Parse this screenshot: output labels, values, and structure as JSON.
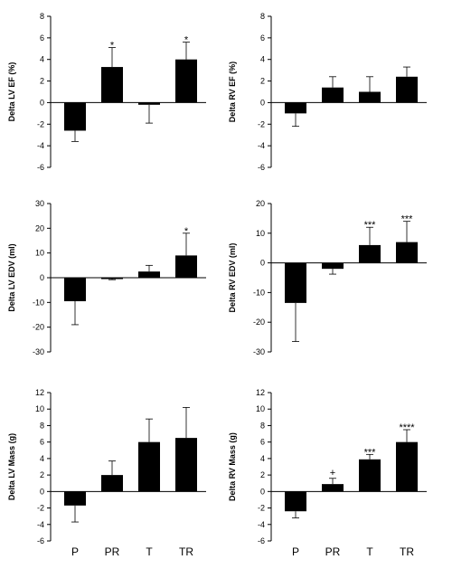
{
  "chart_data": [
    {
      "type": "bar",
      "categories": [
        "P",
        "PR",
        "T",
        "TR"
      ],
      "values": [
        -2.6,
        3.3,
        -0.2,
        4.0
      ],
      "errors": [
        1.0,
        1.8,
        1.7,
        1.6
      ],
      "significance": [
        "",
        "*",
        "",
        "*"
      ],
      "ylabel": "Delta LV EF (%)",
      "ylim": [
        -6,
        8
      ],
      "yticks": [
        "-6",
        "-4",
        "-2",
        "0",
        "2",
        "4",
        "6",
        "8"
      ],
      "show_category_labels": false
    },
    {
      "type": "bar",
      "categories": [
        "P",
        "PR",
        "T",
        "TR"
      ],
      "values": [
        -1.0,
        1.4,
        1.0,
        2.4
      ],
      "errors": [
        1.2,
        1.0,
        1.4,
        0.9
      ],
      "significance": [
        "",
        "",
        "",
        ""
      ],
      "ylabel": "Delta RV EF (%)",
      "ylim": [
        -6,
        8
      ],
      "yticks": [
        "-6",
        "-4",
        "-2",
        "0",
        "2",
        "4",
        "6",
        "8"
      ],
      "show_category_labels": false
    },
    {
      "type": "bar",
      "categories": [
        "P",
        "PR",
        "T",
        "TR"
      ],
      "values": [
        -9.5,
        -0.5,
        2.5,
        9.0
      ],
      "errors": [
        9.5,
        0.3,
        2.5,
        9.0
      ],
      "significance": [
        "",
        "",
        "",
        "*"
      ],
      "ylabel": "Delta LV EDV (ml)",
      "ylim": [
        -30,
        30
      ],
      "yticks": [
        "-30",
        "-20",
        "-10",
        "0",
        "10",
        "20",
        "30"
      ],
      "show_category_labels": false
    },
    {
      "type": "bar",
      "categories": [
        "P",
        "PR",
        "T",
        "TR"
      ],
      "values": [
        -13.5,
        -2.0,
        6.0,
        7.0
      ],
      "errors": [
        13.0,
        1.8,
        6.0,
        7.0
      ],
      "significance": [
        "",
        "",
        "***",
        "***"
      ],
      "ylabel": "Delta RV EDV (ml)",
      "ylim": [
        -30,
        20
      ],
      "yticks": [
        "-30",
        "-20",
        "-10",
        "0",
        "10",
        "20"
      ],
      "show_category_labels": false
    },
    {
      "type": "bar",
      "categories": [
        "P",
        "PR",
        "T",
        "TR"
      ],
      "values": [
        -1.7,
        2.0,
        6.0,
        6.5
      ],
      "errors": [
        2.0,
        1.7,
        2.8,
        3.7
      ],
      "significance": [
        "",
        "",
        "",
        ""
      ],
      "ylabel": "Delta LV Mass (g)",
      "ylim": [
        -6,
        12
      ],
      "yticks": [
        "-6",
        "-4",
        "-2",
        "0",
        "2",
        "4",
        "6",
        "8",
        "10",
        "12"
      ],
      "show_category_labels": true
    },
    {
      "type": "bar",
      "categories": [
        "P",
        "PR",
        "T",
        "TR"
      ],
      "values": [
        -2.4,
        0.9,
        3.9,
        6.0
      ],
      "errors": [
        0.8,
        0.7,
        0.6,
        1.5
      ],
      "significance": [
        "",
        "+",
        "***",
        "****"
      ],
      "ylabel": "Delta RV Mass (g)",
      "ylim": [
        -6,
        12
      ],
      "yticks": [
        "-6",
        "-4",
        "-2",
        "0",
        "2",
        "4",
        "6",
        "8",
        "10",
        "12"
      ],
      "show_category_labels": true
    }
  ]
}
